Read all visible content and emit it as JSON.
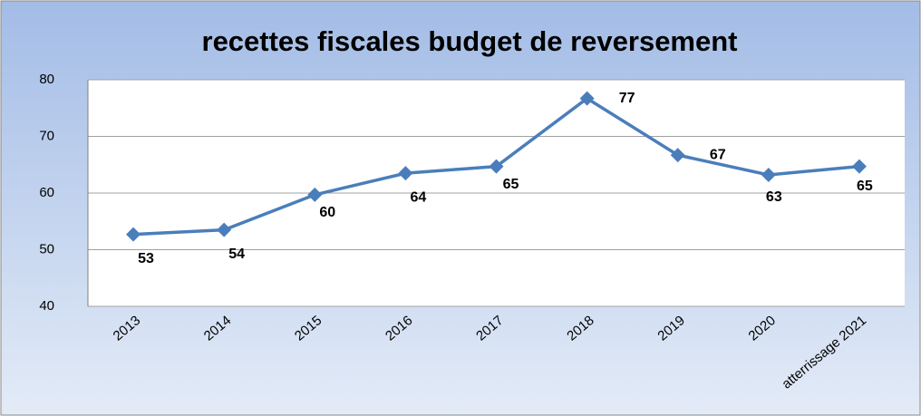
{
  "chart_data": {
    "type": "line",
    "title": "recettes fiscales budget de reversement",
    "categories": [
      "2013",
      "2014",
      "2015",
      "2016",
      "2017",
      "2018",
      "2019",
      "2020",
      "atterrissage 2021"
    ],
    "series": [
      {
        "name": "recettes fiscales",
        "color": "#4a7ebb",
        "values": [
          52.7,
          53.5,
          59.7,
          63.5,
          64.7,
          76.7,
          66.7,
          63.2,
          64.7
        ],
        "value_labels": [
          "53",
          "54",
          "60",
          "64",
          "65",
          "77",
          "67",
          "63",
          "65"
        ]
      }
    ],
    "ylim": [
      40,
      80
    ],
    "yticks": [
      40,
      50,
      60,
      70,
      80
    ],
    "grid": true
  }
}
